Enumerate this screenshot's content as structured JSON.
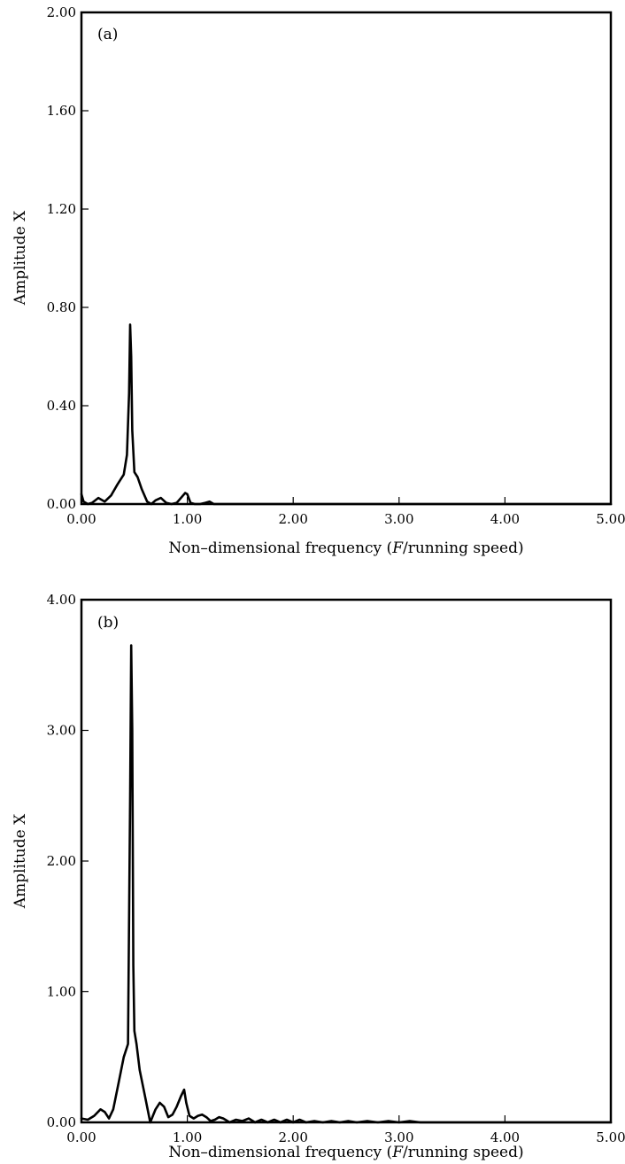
{
  "chart_data": [
    {
      "type": "line",
      "panel_label": "(a)",
      "xlabel_pre": "Non–dimensional frequency (",
      "xlabel_italic": "F",
      "xlabel_post": "/running speed)",
      "ylabel": "Amplitude X",
      "xlim": [
        0,
        5
      ],
      "ylim": [
        0,
        2
      ],
      "xticks": [
        "0.00",
        "1.00",
        "2.00",
        "3.00",
        "4.00",
        "5.00"
      ],
      "yticks": [
        "0.00",
        "0.40",
        "0.80",
        "1.20",
        "1.60",
        "2.00"
      ],
      "series": [
        {
          "x": [
            0.0,
            0.02,
            0.06,
            0.1,
            0.16,
            0.22,
            0.28,
            0.34,
            0.4,
            0.43,
            0.45,
            0.46,
            0.47,
            0.48,
            0.5,
            0.53,
            0.57,
            0.62,
            0.66,
            0.7,
            0.75,
            0.8,
            0.85,
            0.9,
            0.95,
            0.98,
            1.0,
            1.03,
            1.07,
            1.12,
            1.17,
            1.21,
            1.25,
            1.4,
            2.0,
            3.0,
            4.0,
            5.0
          ],
          "y": [
            0.04,
            0.01,
            0.0,
            0.005,
            0.025,
            0.01,
            0.035,
            0.08,
            0.12,
            0.2,
            0.45,
            0.73,
            0.6,
            0.3,
            0.13,
            0.11,
            0.06,
            0.01,
            0.0,
            0.015,
            0.025,
            0.005,
            0.0,
            0.005,
            0.03,
            0.045,
            0.04,
            0.005,
            0.0,
            0.0,
            0.005,
            0.01,
            0.0,
            0.0,
            0.0,
            0.0,
            0.0,
            0.0
          ]
        }
      ]
    },
    {
      "type": "line",
      "panel_label": "(b)",
      "xlabel_pre": "Non–dimensional frequency (",
      "xlabel_italic": "F",
      "xlabel_post": "/running speed)",
      "ylabel": "Amplitude X",
      "xlim": [
        0,
        5
      ],
      "ylim": [
        0,
        4
      ],
      "xticks": [
        "0.00",
        "1.00",
        "2.00",
        "3.00",
        "4.00",
        "5.00"
      ],
      "yticks": [
        "0.00",
        "1.00",
        "2.00",
        "3.00",
        "4.00"
      ],
      "series": [
        {
          "x": [
            0.0,
            0.06,
            0.12,
            0.18,
            0.22,
            0.26,
            0.3,
            0.35,
            0.4,
            0.44,
            0.46,
            0.47,
            0.48,
            0.49,
            0.5,
            0.52,
            0.55,
            0.6,
            0.65,
            0.7,
            0.74,
            0.78,
            0.82,
            0.86,
            0.9,
            0.94,
            0.97,
            0.99,
            1.02,
            1.06,
            1.1,
            1.14,
            1.18,
            1.22,
            1.26,
            1.3,
            1.34,
            1.4,
            1.46,
            1.52,
            1.58,
            1.64,
            1.7,
            1.76,
            1.82,
            1.88,
            1.94,
            2.0,
            2.06,
            2.12,
            2.2,
            2.28,
            2.36,
            2.44,
            2.52,
            2.6,
            2.7,
            2.8,
            2.9,
            3.0,
            3.1,
            3.2,
            3.4,
            3.6,
            3.8,
            4.0,
            4.2,
            4.4,
            4.6,
            4.8,
            5.0
          ],
          "y": [
            0.03,
            0.02,
            0.05,
            0.1,
            0.08,
            0.03,
            0.1,
            0.3,
            0.5,
            0.6,
            2.5,
            3.65,
            3.0,
            1.2,
            0.7,
            0.6,
            0.4,
            0.2,
            0.0,
            0.1,
            0.15,
            0.12,
            0.04,
            0.06,
            0.12,
            0.2,
            0.25,
            0.15,
            0.05,
            0.03,
            0.05,
            0.06,
            0.04,
            0.01,
            0.02,
            0.04,
            0.03,
            0.0,
            0.02,
            0.01,
            0.03,
            0.0,
            0.02,
            0.0,
            0.02,
            0.0,
            0.02,
            0.0,
            0.02,
            0.0,
            0.01,
            0.0,
            0.01,
            0.0,
            0.01,
            0.0,
            0.01,
            0.0,
            0.01,
            0.0,
            0.01,
            0.0,
            0.0,
            0.0,
            0.0,
            0.0,
            0.0,
            0.0,
            0.0,
            0.0,
            0.0
          ]
        }
      ]
    }
  ]
}
